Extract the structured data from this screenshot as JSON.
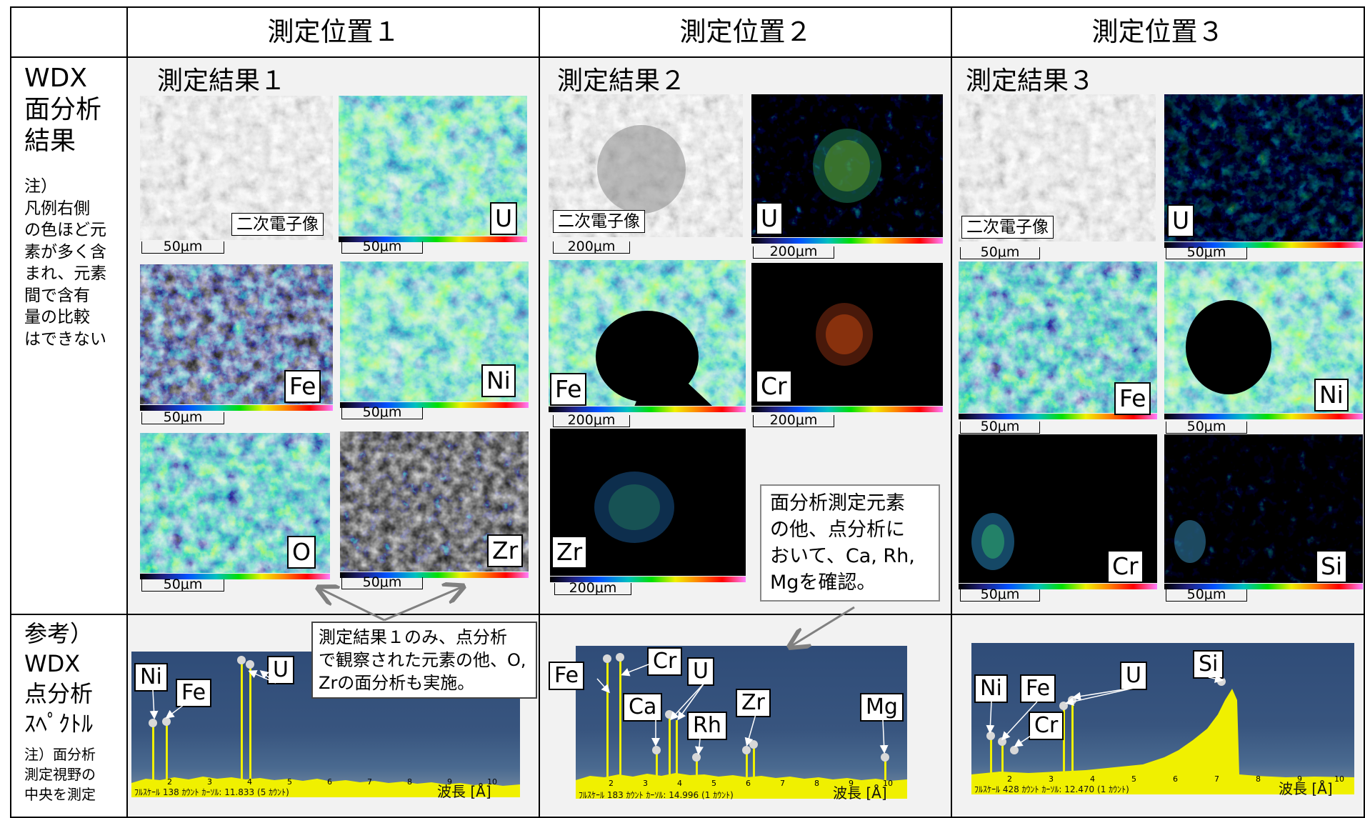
{
  "columns": [
    "測定位置１",
    "測定位置２",
    "測定位置３"
  ],
  "row1_label": {
    "title": [
      "WDX",
      "面分析",
      "結果"
    ],
    "note": [
      "注）",
      "凡例右側",
      "の色ほど元",
      "素が多く含",
      "まれ、元素",
      "間で含有",
      "量の比較",
      "はできない"
    ]
  },
  "row2_label": {
    "title": [
      "参考）",
      "WDX",
      "点分析",
      "ｽﾍﾟｸﾄﾙ"
    ],
    "note": [
      "注）面分析",
      "測定視野の",
      "中央を測定"
    ]
  },
  "results": [
    {
      "title": "測定結果１",
      "secondary_label": "二次電子像",
      "maps": [
        {
          "label": "U",
          "scale": "50μm"
        },
        {
          "label": "Fe",
          "scale": "50μm"
        },
        {
          "label": "Ni",
          "scale": "50μm"
        },
        {
          "label": "O",
          "scale": "50μm"
        },
        {
          "label": "Zr",
          "scale": "50μm"
        }
      ],
      "sem_scale": "50μm"
    },
    {
      "title": "測定結果２",
      "secondary_label": "二次電子像",
      "maps": [
        {
          "label": "U",
          "scale": "200μm"
        },
        {
          "label": "Fe",
          "scale": "200μm"
        },
        {
          "label": "Cr",
          "scale": "200μm"
        },
        {
          "label": "Zr",
          "scale": "200μm"
        }
      ],
      "sem_scale": "200μm"
    },
    {
      "title": "測定結果３",
      "secondary_label": "二次電子像",
      "maps": [
        {
          "label": "U",
          "scale": "50μm"
        },
        {
          "label": "Fe",
          "scale": "50μm"
        },
        {
          "label": "Ni",
          "scale": "50μm"
        },
        {
          "label": "Cr",
          "scale": "50μm"
        },
        {
          "label": "Si",
          "scale": "50μm"
        }
      ],
      "sem_scale": "50μm"
    }
  ],
  "notes": {
    "result1": [
      "測定結果１のみ、点分析",
      "で観察された元素の他、O,",
      "Zrの面分析も実施。"
    ],
    "result2": [
      "面分析測定元素",
      "の他、点分析に",
      "おいて、Ca, Rh,",
      "Mgを確認。"
    ]
  },
  "spectra": [
    {
      "peaks": [
        "Ni",
        "Fe",
        "U"
      ],
      "axis_ticks": [
        "2",
        "3",
        "4",
        "5",
        "6",
        "7",
        "8",
        "9",
        "10"
      ],
      "footer": "ﾌﾙｽｹｰﾙ 138 ｶｳﾝﾄ ｶｰｿﾙ: 11.833 (5 ｶｳﾝﾄ)",
      "axis_label": "波長 [Å]"
    },
    {
      "peaks": [
        "Fe",
        "Cr",
        "U",
        "Ca",
        "Rh",
        "Zr",
        "Mg"
      ],
      "axis_ticks": [
        "2",
        "3",
        "4",
        "5",
        "6",
        "7",
        "8",
        "9",
        "10"
      ],
      "footer": "ﾌﾙｽｹｰﾙ 183 ｶｳﾝﾄ ｶｰｿﾙ: 14.996 (1 ｶｳﾝﾄ)",
      "axis_label": "波長 [Å]"
    },
    {
      "peaks": [
        "Ni",
        "Fe",
        "U",
        "Si",
        "Cr"
      ],
      "axis_ticks": [
        "2",
        "3",
        "4",
        "5",
        "6",
        "7",
        "8",
        "9",
        "10"
      ],
      "footer": "ﾌﾙｽｹｰﾙ 428 ｶｳﾝﾄ ｶｰｿﾙ: 12.470 (1 ｶｳﾝﾄ)",
      "axis_label": "波長 [Å]"
    }
  ],
  "colors": {
    "grid_line": "#000000",
    "cell_bg": "#f2f2f2",
    "spectrum_bg": "#34507a",
    "spectrum_peak": "#f0f000",
    "arrow": "#808080"
  }
}
